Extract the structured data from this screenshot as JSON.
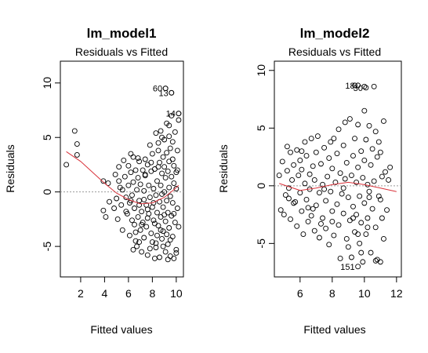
{
  "chart_data": [
    {
      "type": "scatter",
      "title": "lm_model1",
      "subtitle": "Residuals vs Fitted",
      "xlabel": "Fitted values",
      "ylabel": "Residuals",
      "xlim": [
        0.3,
        10.6
      ],
      "ylim": [
        -7.8,
        12.0
      ],
      "xticks": [
        2,
        4,
        6,
        8,
        10
      ],
      "yticks": [
        -5,
        0,
        5,
        10
      ],
      "reference_line_y": 0,
      "points": [
        [
          0.8,
          2.5
        ],
        [
          1.5,
          5.6
        ],
        [
          1.7,
          4.4
        ],
        [
          1.7,
          3.4
        ],
        [
          3.9,
          1.0
        ],
        [
          3.9,
          -1.7
        ],
        [
          4.1,
          -2.3
        ],
        [
          4.3,
          0.8
        ],
        [
          4.4,
          -0.9
        ],
        [
          4.8,
          -1.5
        ],
        [
          4.9,
          1.6
        ],
        [
          5.0,
          -0.6
        ],
        [
          5.1,
          -2.5
        ],
        [
          5.2,
          1.0
        ],
        [
          5.2,
          2.3
        ],
        [
          5.4,
          -1.2
        ],
        [
          5.5,
          0.2
        ],
        [
          5.5,
          -3.5
        ],
        [
          5.6,
          2.9
        ],
        [
          5.7,
          1.4
        ],
        [
          5.8,
          -0.5
        ],
        [
          5.9,
          -2.0
        ],
        [
          6.0,
          2.4
        ],
        [
          6.0,
          0.6
        ],
        [
          6.1,
          -1.0
        ],
        [
          6.1,
          -4.0
        ],
        [
          6.2,
          1.8
        ],
        [
          6.3,
          -0.3
        ],
        [
          6.3,
          -2.6
        ],
        [
          6.4,
          3.2
        ],
        [
          6.4,
          0.9
        ],
        [
          6.5,
          -1.5
        ],
        [
          6.5,
          -3.0
        ],
        [
          6.6,
          2.0
        ],
        [
          6.6,
          -4.5
        ],
        [
          6.7,
          0.2
        ],
        [
          6.7,
          -5.0
        ],
        [
          6.8,
          1.3
        ],
        [
          6.8,
          -2.3
        ],
        [
          6.9,
          2.8
        ],
        [
          6.9,
          -0.8
        ],
        [
          7.0,
          -3.5
        ],
        [
          7.0,
          0.7
        ],
        [
          7.1,
          -1.8
        ],
        [
          7.1,
          -5.5
        ],
        [
          7.2,
          2.0
        ],
        [
          7.2,
          -2.8
        ],
        [
          7.3,
          0.1
        ],
        [
          7.3,
          -4.2
        ],
        [
          7.4,
          1.5
        ],
        [
          7.4,
          3.0
        ],
        [
          7.5,
          -1.2
        ],
        [
          7.5,
          -3.2
        ],
        [
          7.6,
          2.5
        ],
        [
          7.6,
          -5.8
        ],
        [
          7.7,
          0.6
        ],
        [
          7.7,
          -2.0
        ],
        [
          7.8,
          4.3
        ],
        [
          7.8,
          -0.5
        ],
        [
          7.9,
          1.9
        ],
        [
          7.9,
          -3.8
        ],
        [
          8.0,
          -1.4
        ],
        [
          8.0,
          -4.6
        ],
        [
          8.0,
          3.5
        ],
        [
          8.1,
          0.3
        ],
        [
          8.1,
          -2.6
        ],
        [
          8.2,
          -6.1
        ],
        [
          8.2,
          2.1
        ],
        [
          8.3,
          5.4
        ],
        [
          8.3,
          -0.3
        ],
        [
          8.3,
          -5.1
        ],
        [
          8.4,
          1.0
        ],
        [
          8.4,
          -1.9
        ],
        [
          8.5,
          3.8
        ],
        [
          8.5,
          -3.1
        ],
        [
          8.5,
          4.5
        ],
        [
          8.6,
          -0.9
        ],
        [
          8.6,
          2.7
        ],
        [
          8.6,
          -6.0
        ],
        [
          8.7,
          0.6
        ],
        [
          8.7,
          -2.3
        ],
        [
          8.7,
          5.6
        ],
        [
          8.8,
          1.7
        ],
        [
          8.8,
          -4.3
        ],
        [
          8.8,
          -0.2
        ],
        [
          8.9,
          3.2
        ],
        [
          8.9,
          -1.4
        ],
        [
          8.9,
          -3.6
        ],
        [
          9.0,
          2.3
        ],
        [
          9.0,
          4.8
        ],
        [
          9.0,
          0.0
        ],
        [
          9.1,
          -5.5
        ],
        [
          9.1,
          1.3
        ],
        [
          9.1,
          -2.7
        ],
        [
          9.2,
          6.3
        ],
        [
          9.2,
          3.6
        ],
        [
          9.2,
          -0.8
        ],
        [
          9.3,
          -4.8
        ],
        [
          9.3,
          1.9
        ],
        [
          9.3,
          -1.9
        ],
        [
          9.4,
          5.1
        ],
        [
          9.4,
          0.4
        ],
        [
          9.4,
          -3.3
        ],
        [
          9.4,
          2.8
        ],
        [
          9.5,
          -0.4
        ],
        [
          9.5,
          4.0
        ],
        [
          9.5,
          -5.9
        ],
        [
          9.6,
          1.4
        ],
        [
          9.6,
          -2.2
        ],
        [
          9.6,
          7.0
        ],
        [
          9.7,
          3.0
        ],
        [
          9.7,
          -1.0
        ],
        [
          9.7,
          -4.1
        ],
        [
          9.8,
          0.8
        ],
        [
          9.8,
          2.4
        ],
        [
          9.8,
          -6.1
        ],
        [
          9.9,
          5.5
        ],
        [
          9.9,
          -2.8
        ],
        [
          10.0,
          1.8
        ],
        [
          10.0,
          -5.3
        ],
        [
          10.0,
          0.3
        ],
        [
          10.1,
          3.8
        ],
        [
          10.1,
          -1.5
        ],
        [
          10.2,
          -3.2
        ],
        [
          10.2,
          6.6
        ],
        [
          9.1,
          9.5
        ],
        [
          9.6,
          9.1
        ],
        [
          10.2,
          7.2
        ],
        [
          6.2,
          -0.8
        ],
        [
          6.9,
          -1.2
        ],
        [
          7.3,
          -0.7
        ],
        [
          7.6,
          -1.6
        ],
        [
          8.1,
          -1.0
        ],
        [
          8.4,
          -4.0
        ],
        [
          8.9,
          -5.0
        ],
        [
          9.3,
          -6.2
        ],
        [
          10.0,
          -5.6
        ],
        [
          9.8,
          -2.0
        ],
        [
          9.0,
          -2.1
        ],
        [
          8.2,
          -2.9
        ],
        [
          6.6,
          -3.7
        ],
        [
          7.1,
          -3.0
        ],
        [
          6.4,
          -5.3
        ],
        [
          5.8,
          -1.8
        ],
        [
          8.8,
          5.0
        ],
        [
          9.4,
          6.1
        ],
        [
          9.7,
          4.6
        ],
        [
          10.1,
          2.0
        ],
        [
          8.5,
          2.3
        ],
        [
          7.9,
          2.7
        ],
        [
          7.4,
          1.6
        ],
        [
          6.8,
          3.1
        ],
        [
          6.2,
          3.5
        ],
        [
          5.3,
          0.4
        ],
        [
          9.2,
          -3.9
        ],
        [
          9.5,
          -4.4
        ],
        [
          8.7,
          -3.5
        ],
        [
          7.6,
          -2.4
        ],
        [
          6.9,
          -4.6
        ],
        [
          7.8,
          -5.2
        ],
        [
          8.3,
          -4.7
        ]
      ],
      "labeled_points": [
        {
          "label": "60",
          "x": 9.1,
          "y": 9.5
        },
        {
          "label": "13",
          "x": 9.6,
          "y": 9.1
        },
        {
          "label": "14",
          "x": 10.2,
          "y": 7.2
        }
      ],
      "smooth_line": [
        [
          0.8,
          3.7
        ],
        [
          2.0,
          2.8
        ],
        [
          3.0,
          1.8
        ],
        [
          4.0,
          0.8
        ],
        [
          5.0,
          -0.1
        ],
        [
          6.0,
          -0.7
        ],
        [
          7.0,
          -1.1
        ],
        [
          8.0,
          -1.0
        ],
        [
          9.0,
          -0.5
        ],
        [
          9.8,
          0.2
        ],
        [
          10.2,
          0.6
        ]
      ]
    },
    {
      "type": "scatter",
      "title": "lm_model2",
      "subtitle": "Residuals vs Fitted",
      "xlabel": "Fitted values",
      "ylabel": "Residuals",
      "xlim": [
        4.4,
        12.3
      ],
      "ylim": [
        -7.9,
        10.8
      ],
      "xticks": [
        6,
        8,
        10,
        12
      ],
      "yticks": [
        -5,
        0,
        5,
        10
      ],
      "reference_line_y": 0,
      "points": [
        [
          4.7,
          0.9
        ],
        [
          4.8,
          -2.1
        ],
        [
          4.9,
          2.1
        ],
        [
          5.0,
          -2.5
        ],
        [
          5.1,
          -0.8
        ],
        [
          5.2,
          3.4
        ],
        [
          5.2,
          1.3
        ],
        [
          5.3,
          -0.2
        ],
        [
          5.4,
          2.9
        ],
        [
          5.4,
          -2.9
        ],
        [
          5.5,
          0.5
        ],
        [
          5.6,
          1.8
        ],
        [
          5.7,
          -1.4
        ],
        [
          5.8,
          3.1
        ],
        [
          5.8,
          -3.5
        ],
        [
          5.9,
          0.9
        ],
        [
          6.0,
          -0.6
        ],
        [
          6.0,
          2.2
        ],
        [
          6.1,
          -2.2
        ],
        [
          6.1,
          1.4
        ],
        [
          6.2,
          -4.2
        ],
        [
          6.3,
          0.2
        ],
        [
          6.3,
          3.8
        ],
        [
          6.4,
          -1.2
        ],
        [
          6.4,
          2.6
        ],
        [
          6.5,
          -3.1
        ],
        [
          6.6,
          1.0
        ],
        [
          6.6,
          -0.3
        ],
        [
          6.7,
          4.1
        ],
        [
          6.7,
          -2.6
        ],
        [
          6.8,
          1.7
        ],
        [
          6.9,
          -3.9
        ],
        [
          6.9,
          0.5
        ],
        [
          7.0,
          2.9
        ],
        [
          7.0,
          -1.7
        ],
        [
          7.1,
          4.3
        ],
        [
          7.2,
          -0.6
        ],
        [
          7.2,
          -4.5
        ],
        [
          7.3,
          1.9
        ],
        [
          7.4,
          -2.8
        ],
        [
          7.4,
          0.1
        ],
        [
          7.5,
          3.3
        ],
        [
          7.6,
          -1.3
        ],
        [
          7.6,
          -3.7
        ],
        [
          7.7,
          0.8
        ],
        [
          7.8,
          2.4
        ],
        [
          7.8,
          -5.1
        ],
        [
          7.9,
          -0.5
        ],
        [
          8.0,
          1.5
        ],
        [
          8.0,
          -2.2
        ],
        [
          8.1,
          4.1
        ],
        [
          8.1,
          -4.3
        ],
        [
          8.2,
          0.3
        ],
        [
          8.3,
          -1.6
        ],
        [
          8.3,
          2.8
        ],
        [
          8.4,
          -3.4
        ],
        [
          8.5,
          1.1
        ],
        [
          8.5,
          -6.3
        ],
        [
          8.6,
          -0.7
        ],
        [
          8.7,
          3.5
        ],
        [
          8.7,
          -2.4
        ],
        [
          8.8,
          5.5
        ],
        [
          8.8,
          0.6
        ],
        [
          8.9,
          -4.6
        ],
        [
          8.9,
          2.0
        ],
        [
          9.0,
          -1.0
        ],
        [
          9.1,
          -3.0
        ],
        [
          9.1,
          5.8
        ],
        [
          9.2,
          0.9
        ],
        [
          9.2,
          -6.2
        ],
        [
          9.3,
          2.6
        ],
        [
          9.3,
          -1.8
        ],
        [
          9.4,
          -4.0
        ],
        [
          9.4,
          4.1
        ],
        [
          9.5,
          0.3
        ],
        [
          9.5,
          -2.5
        ],
        [
          9.6,
          5.3
        ],
        [
          9.6,
          1.6
        ],
        [
          9.7,
          -0.9
        ],
        [
          9.7,
          -5.0
        ],
        [
          9.8,
          3.0
        ],
        [
          9.8,
          -3.2
        ],
        [
          9.9,
          0.7
        ],
        [
          9.9,
          -6.6
        ],
        [
          10.0,
          2.2
        ],
        [
          10.0,
          -1.5
        ],
        [
          10.0,
          6.5
        ],
        [
          10.1,
          4.0
        ],
        [
          10.1,
          -4.2
        ],
        [
          10.2,
          0.1
        ],
        [
          10.2,
          -2.8
        ],
        [
          10.3,
          5.2
        ],
        [
          10.3,
          -0.5
        ],
        [
          10.4,
          1.8
        ],
        [
          10.4,
          -5.8
        ],
        [
          10.5,
          3.2
        ],
        [
          10.5,
          -2.0
        ],
        [
          10.6,
          0.4
        ],
        [
          10.7,
          4.7
        ],
        [
          10.7,
          -3.6
        ],
        [
          10.8,
          -6.4
        ],
        [
          10.8,
          2.5
        ],
        [
          10.9,
          -0.9
        ],
        [
          11.0,
          -6.6
        ],
        [
          11.0,
          2.9
        ],
        [
          11.1,
          -2.8
        ],
        [
          11.1,
          0.8
        ],
        [
          11.2,
          5.6
        ],
        [
          11.2,
          -4.6
        ],
        [
          11.3,
          1.2
        ],
        [
          11.4,
          -2.1
        ],
        [
          11.5,
          0.5
        ],
        [
          11.6,
          1.6
        ],
        [
          9.4,
          8.7
        ],
        [
          10.0,
          8.6
        ],
        [
          10.6,
          8.6
        ],
        [
          10.7,
          -6.5
        ],
        [
          5.6,
          -1.5
        ],
        [
          6.1,
          3.0
        ],
        [
          6.8,
          -2.0
        ],
        [
          7.3,
          -3.3
        ],
        [
          7.9,
          3.8
        ],
        [
          8.4,
          4.9
        ],
        [
          9.0,
          -5.3
        ],
        [
          9.6,
          -4.2
        ],
        [
          10.2,
          -3.6
        ],
        [
          10.9,
          3.8
        ],
        [
          8.7,
          -0.2
        ],
        [
          7.5,
          -0.3
        ],
        [
          9.3,
          -2.8
        ],
        [
          10.3,
          -1.0
        ],
        [
          8.0,
          -3.1
        ],
        [
          6.5,
          -1.9
        ],
        [
          5.3,
          -1.1
        ],
        [
          11.0,
          -1.2
        ],
        [
          9.8,
          -5.8
        ]
      ],
      "labeled_points": [
        {
          "label": "18",
          "x": 9.6,
          "y": 8.7
        },
        {
          "label": "30",
          "x": 10.1,
          "y": 8.5
        },
        {
          "label": "151",
          "x": 9.6,
          "y": -7.0
        }
      ],
      "smooth_line": [
        [
          4.7,
          0.2
        ],
        [
          6.0,
          -0.4
        ],
        [
          7.0,
          -0.2
        ],
        [
          8.0,
          0.1
        ],
        [
          9.0,
          0.3
        ],
        [
          10.0,
          0.1
        ],
        [
          11.0,
          -0.2
        ],
        [
          12.0,
          -0.5
        ]
      ]
    }
  ]
}
